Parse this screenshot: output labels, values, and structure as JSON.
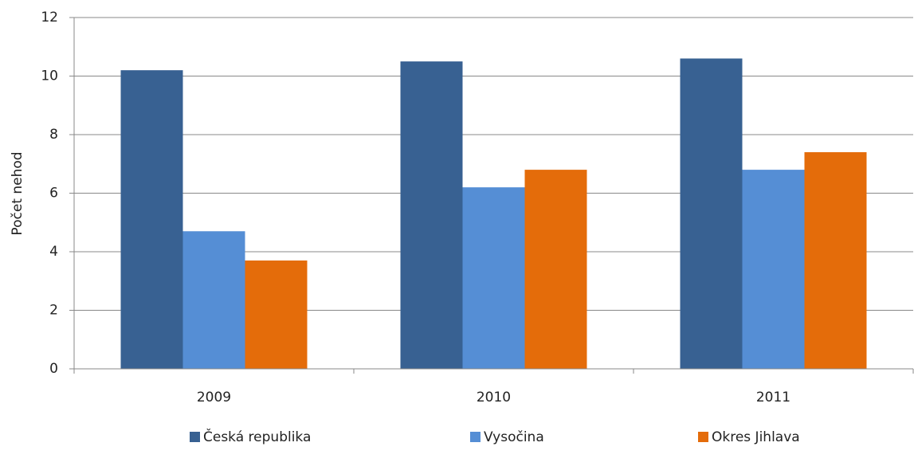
{
  "chart_data": {
    "type": "bar",
    "categories": [
      "2009",
      "2010",
      "2011"
    ],
    "series": [
      {
        "name": "Česká republika",
        "color": "#386192",
        "values": [
          10.2,
          10.5,
          10.6
        ]
      },
      {
        "name": "Vysočina",
        "color": "#558ed5",
        "values": [
          4.7,
          6.2,
          6.8
        ]
      },
      {
        "name": "Okres Jihlava",
        "color": "#e46c0a",
        "values": [
          3.7,
          6.8,
          7.4
        ]
      }
    ],
    "y_label": "Počet nehod",
    "ylim": [
      0,
      12
    ],
    "yticks": [
      0,
      2,
      4,
      6,
      8,
      10,
      12
    ],
    "grid": true,
    "legend": "bottom"
  }
}
